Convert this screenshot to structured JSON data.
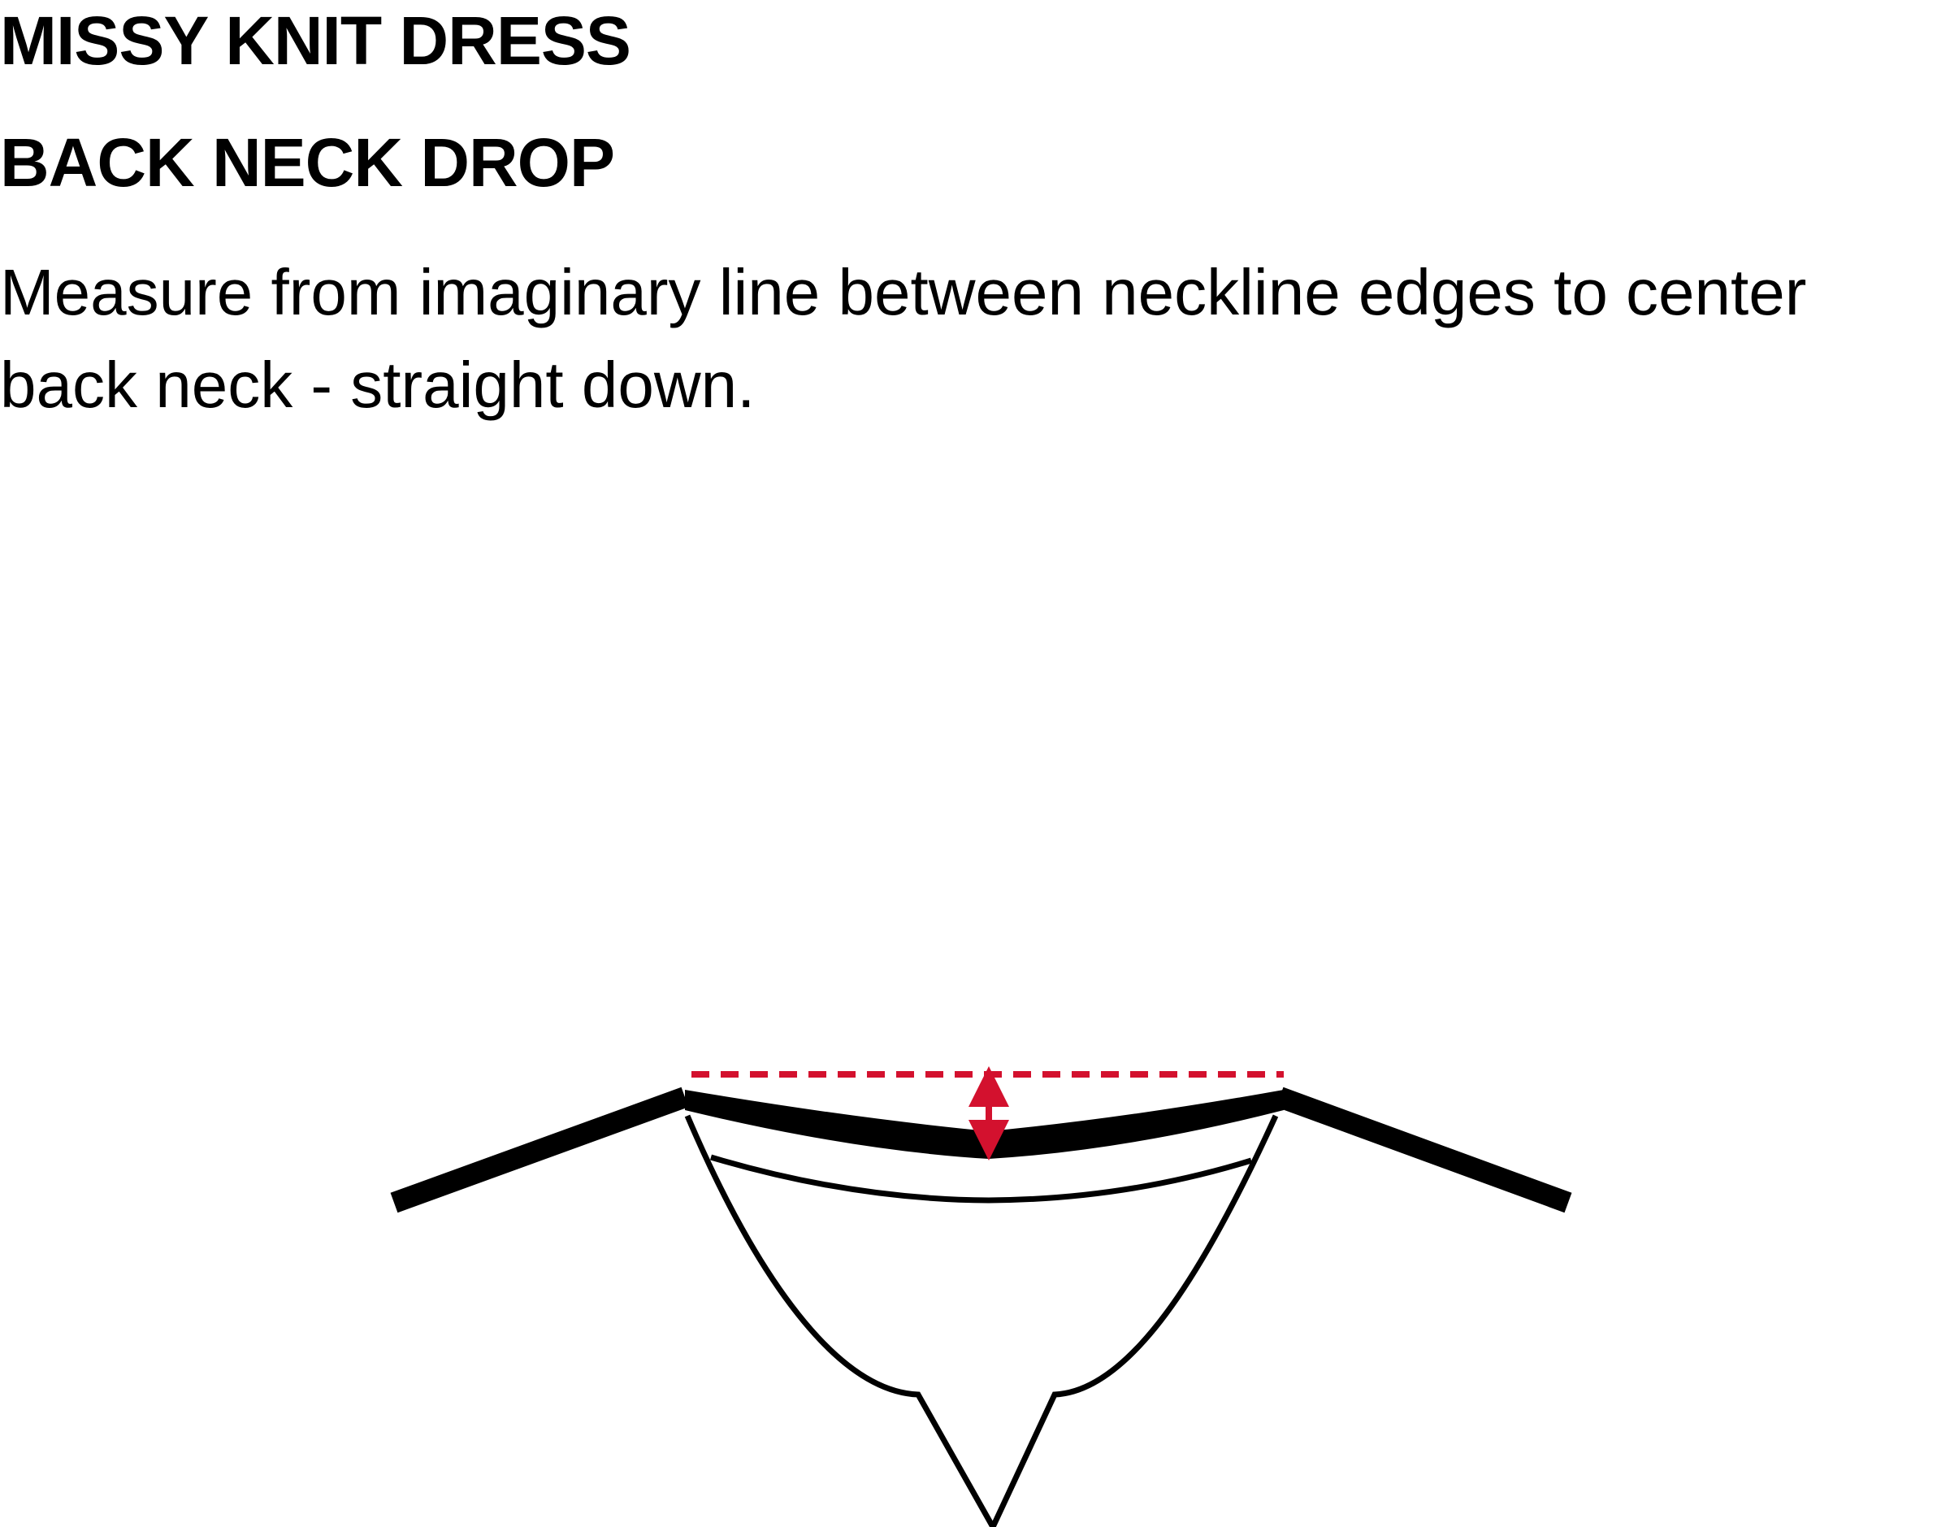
{
  "garment_title": "MISSY KNIT DRESS",
  "measurement_name": "BACK NECK DROP",
  "instructions": "Measure from imaginary line between neckline edges to center back neck - straight down.",
  "colors": {
    "accent": "#d3112e",
    "line": "#000000",
    "background": "#ffffff"
  }
}
